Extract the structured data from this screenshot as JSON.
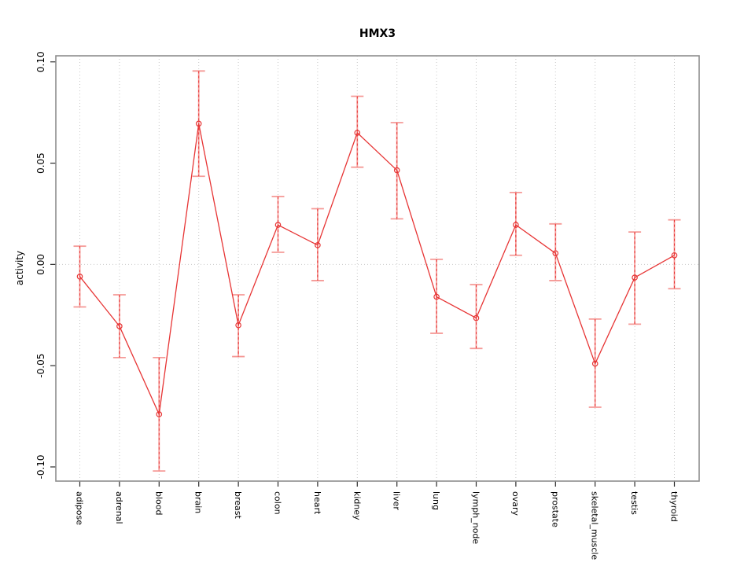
{
  "chart_data": {
    "type": "line",
    "title": "HMX3",
    "xlabel": "",
    "ylabel": "activity",
    "categories": [
      "adipose",
      "adrenal",
      "blood",
      "brain",
      "breast",
      "colon",
      "heart",
      "kidney",
      "liver",
      "lung",
      "lymph_node",
      "ovary",
      "prostate",
      "skeletal_muscle",
      "testis",
      "thyroid"
    ],
    "series": [
      {
        "name": "activity",
        "values": [
          -0.006,
          -0.0305,
          -0.074,
          0.0695,
          -0.03,
          0.0195,
          0.0095,
          0.065,
          0.0465,
          -0.016,
          -0.0265,
          0.0195,
          0.0055,
          -0.049,
          -0.0065,
          0.0045
        ],
        "ci_low": [
          -0.021,
          -0.046,
          -0.102,
          0.0435,
          -0.0455,
          0.006,
          -0.008,
          0.048,
          0.0225,
          -0.034,
          -0.0415,
          0.0045,
          -0.008,
          -0.0705,
          -0.0295,
          -0.012
        ],
        "ci_high": [
          0.009,
          -0.015,
          -0.046,
          0.0955,
          -0.015,
          0.0335,
          0.0275,
          0.083,
          0.07,
          0.0025,
          -0.01,
          0.0355,
          0.02,
          -0.027,
          0.016,
          0.022
        ]
      }
    ],
    "yticks": {
      "values": [
        0.1,
        0.05,
        0.0,
        -0.05,
        -0.1
      ],
      "labels": [
        "0.10",
        "0.05",
        "0.00",
        "-0.05",
        "-0.10"
      ]
    },
    "ylim": [
      -0.107,
      0.103
    ],
    "grid": {
      "vertical": "dotted line at every category",
      "horizontal_at": 0
    },
    "legend": "none",
    "point_style": "open-circle",
    "error_bar_style": "solid light caps and stem with dashed red overlay",
    "colors": {
      "line": "#e73535",
      "error_bar": "#f59a97",
      "grid": "#c9c9c9",
      "box": "#8d8d8d",
      "text": "#000000",
      "background": "#ffffff"
    }
  }
}
